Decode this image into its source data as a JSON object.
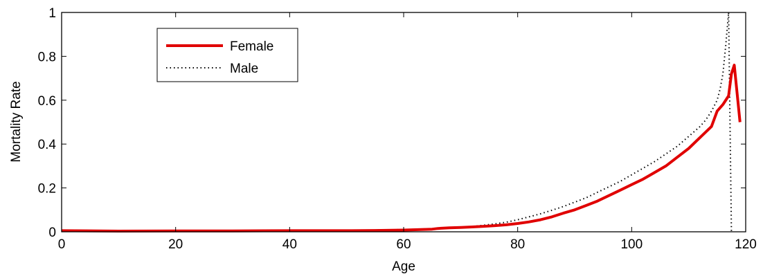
{
  "chart_data": {
    "type": "line",
    "title": "",
    "xlabel": "Age",
    "ylabel": "Mortality Rate",
    "xlim": [
      0,
      120
    ],
    "ylim": [
      0,
      1
    ],
    "xticks": [
      0,
      20,
      40,
      60,
      80,
      100,
      120
    ],
    "yticks": [
      0,
      0.2,
      0.4,
      0.6,
      0.8,
      1
    ],
    "ytick_labels": [
      "0",
      "0.2",
      "0.4",
      "0.6",
      "0.8",
      "1"
    ],
    "grid": false,
    "legend_position": "top-left",
    "series": [
      {
        "name": "Female",
        "style": "solid",
        "color": "#e00000",
        "x": [
          0,
          10,
          20,
          30,
          40,
          50,
          55,
          60,
          63,
          65,
          66,
          68,
          70,
          72,
          74,
          76,
          78,
          80,
          82,
          84,
          86,
          88,
          90,
          92,
          94,
          96,
          98,
          100,
          102,
          104,
          106,
          108,
          110,
          112,
          114,
          115,
          116,
          117,
          117.5,
          118,
          119
        ],
        "y": [
          0.005,
          0.003,
          0.004,
          0.004,
          0.005,
          0.005,
          0.006,
          0.008,
          0.01,
          0.012,
          0.015,
          0.018,
          0.02,
          0.022,
          0.025,
          0.028,
          0.032,
          0.038,
          0.045,
          0.055,
          0.068,
          0.085,
          0.1,
          0.12,
          0.14,
          0.165,
          0.19,
          0.215,
          0.24,
          0.27,
          0.3,
          0.34,
          0.38,
          0.43,
          0.48,
          0.55,
          0.58,
          0.62,
          0.72,
          0.76,
          0.5
        ]
      },
      {
        "name": "Male",
        "style": "dotted",
        "color": "#000000",
        "x": [
          0,
          10,
          20,
          30,
          40,
          50,
          60,
          65,
          70,
          72,
          74,
          76,
          78,
          80,
          82,
          84,
          86,
          88,
          90,
          92,
          94,
          96,
          98,
          100,
          102,
          104,
          106,
          108,
          110,
          112,
          113,
          114,
          115,
          115.5,
          116,
          116.5,
          117,
          117.5
        ],
        "y": [
          0.005,
          0.004,
          0.005,
          0.005,
          0.005,
          0.006,
          0.01,
          0.014,
          0.02,
          0.024,
          0.03,
          0.036,
          0.044,
          0.055,
          0.068,
          0.082,
          0.098,
          0.115,
          0.135,
          0.155,
          0.18,
          0.205,
          0.23,
          0.26,
          0.29,
          0.32,
          0.355,
          0.39,
          0.435,
          0.48,
          0.51,
          0.55,
          0.6,
          0.65,
          0.72,
          0.85,
          1.0,
          0.0
        ]
      }
    ]
  }
}
